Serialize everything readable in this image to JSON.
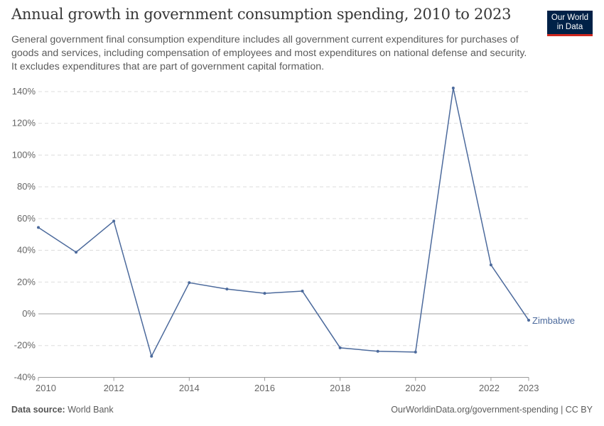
{
  "header": {
    "title": "Annual growth in government consumption spending, 2010 to 2023",
    "subtitle": "General government final consumption expenditure includes all government current expenditures for purchases of goods and services, including compensation of employees and most expenditures on national defense and security. It excludes expenditures that are part of government capital formation.",
    "logo": "Our World in Data"
  },
  "footer": {
    "source_label": "Data source:",
    "source": "World Bank",
    "url": "OurWorldinData.org/government-spending | CC BY"
  },
  "chart_data": {
    "type": "line",
    "title": "Annual growth in government consumption spending, 2010 to 2023",
    "x": [
      2010,
      2011,
      2012,
      2013,
      2014,
      2015,
      2016,
      2017,
      2018,
      2019,
      2020,
      2021,
      2022,
      2023
    ],
    "series": [
      {
        "name": "Zimbabwe",
        "color": "#4c6a9c",
        "values": [
          54.4,
          38.8,
          58.4,
          -26.7,
          19.6,
          15.6,
          12.9,
          14.3,
          -21.4,
          -23.6,
          -24.1,
          142.2,
          30.8,
          -4.0
        ]
      }
    ],
    "xlim": [
      2010,
      2023
    ],
    "ylim": [
      -40,
      140
    ],
    "yticks": [
      -40,
      -20,
      0,
      20,
      40,
      60,
      80,
      100,
      120,
      140
    ],
    "ytick_labels": [
      "-40%",
      "-20%",
      "0%",
      "20%",
      "40%",
      "60%",
      "80%",
      "100%",
      "120%",
      "140%"
    ],
    "xticks": [
      2010,
      2012,
      2014,
      2016,
      2018,
      2020,
      2022,
      2023
    ],
    "xtick_labels": [
      "2010",
      "2012",
      "2014",
      "2016",
      "2018",
      "2020",
      "2022",
      "2023"
    ],
    "grid": true,
    "legend": "inline-right"
  }
}
